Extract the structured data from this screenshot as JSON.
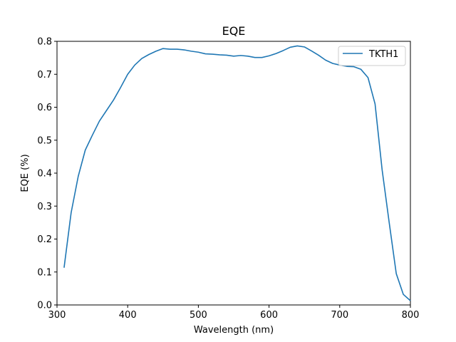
{
  "chart_data": {
    "type": "line",
    "title": "EQE",
    "xlabel": "Wavelength (nm)",
    "ylabel": "EQE (%)",
    "xlim": [
      300,
      800
    ],
    "ylim": [
      0.0,
      0.8
    ],
    "x_ticks": [
      "300",
      "400",
      "500",
      "600",
      "700",
      "800"
    ],
    "y_ticks": [
      "0.0",
      "0.1",
      "0.2",
      "0.3",
      "0.4",
      "0.5",
      "0.6",
      "0.7",
      "0.8"
    ],
    "grid": false,
    "legend_position": "top-right",
    "series": [
      {
        "name": "TKTH1",
        "color": "#1f77b4",
        "x": [
          310,
          320,
          330,
          340,
          350,
          360,
          370,
          380,
          390,
          400,
          410,
          420,
          430,
          440,
          450,
          460,
          470,
          480,
          490,
          500,
          510,
          520,
          530,
          540,
          550,
          560,
          570,
          580,
          590,
          600,
          610,
          620,
          630,
          640,
          650,
          660,
          670,
          680,
          690,
          700,
          710,
          720,
          730,
          740,
          750,
          760,
          770,
          780,
          790,
          800
        ],
        "y": [
          0.113,
          0.28,
          0.39,
          0.47,
          0.515,
          0.558,
          0.59,
          0.622,
          0.66,
          0.7,
          0.728,
          0.748,
          0.76,
          0.77,
          0.778,
          0.776,
          0.776,
          0.774,
          0.77,
          0.767,
          0.762,
          0.761,
          0.759,
          0.758,
          0.755,
          0.757,
          0.755,
          0.751,
          0.751,
          0.756,
          0.763,
          0.772,
          0.782,
          0.786,
          0.783,
          0.771,
          0.758,
          0.743,
          0.733,
          0.728,
          0.724,
          0.723,
          0.715,
          0.69,
          0.61,
          0.41,
          0.25,
          0.095,
          0.032,
          0.013
        ]
      }
    ]
  }
}
